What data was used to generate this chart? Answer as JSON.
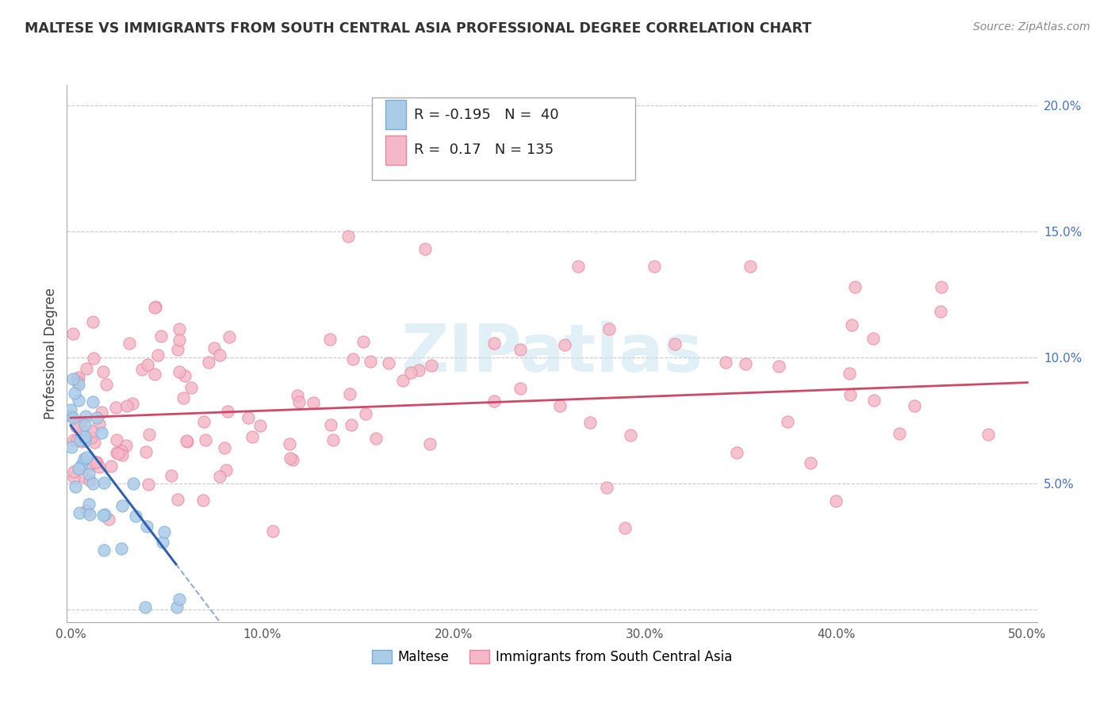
{
  "title": "MALTESE VS IMMIGRANTS FROM SOUTH CENTRAL ASIA PROFESSIONAL DEGREE CORRELATION CHART",
  "source": "Source: ZipAtlas.com",
  "ylabel": "Professional Degree",
  "xlim": [
    -0.002,
    0.505
  ],
  "ylim": [
    -0.005,
    0.208
  ],
  "xticks": [
    0.0,
    0.05,
    0.1,
    0.15,
    0.2,
    0.25,
    0.3,
    0.35,
    0.4,
    0.45,
    0.5
  ],
  "xtick_labels": [
    "0.0%",
    "",
    "10.0%",
    "",
    "20.0%",
    "",
    "30.0%",
    "",
    "40.0%",
    "",
    "50.0%"
  ],
  "ytick_vals": [
    0.0,
    0.05,
    0.1,
    0.15,
    0.2
  ],
  "ytick_labels": [
    "",
    "5.0%",
    "10.0%",
    "15.0%",
    "20.0%"
  ],
  "grid_color": "#c8c8c8",
  "bg_color": "#ffffff",
  "maltese_fill": "#aacce8",
  "maltese_edge": "#7badd4",
  "pink_fill": "#f4b8c8",
  "pink_edge": "#e8849c",
  "blue_line_color": "#3060b0",
  "pink_line_color": "#d04868",
  "maltese_R": -0.195,
  "maltese_N": 40,
  "pink_R": 0.17,
  "pink_N": 135,
  "label_maltese": "Maltese",
  "label_pink": "Immigrants from South Central Asia",
  "watermark": "ZIPatlas",
  "ytick_color": "#4472c4",
  "xtick_color": "#555555",
  "title_color": "#333333",
  "source_color": "#888888"
}
